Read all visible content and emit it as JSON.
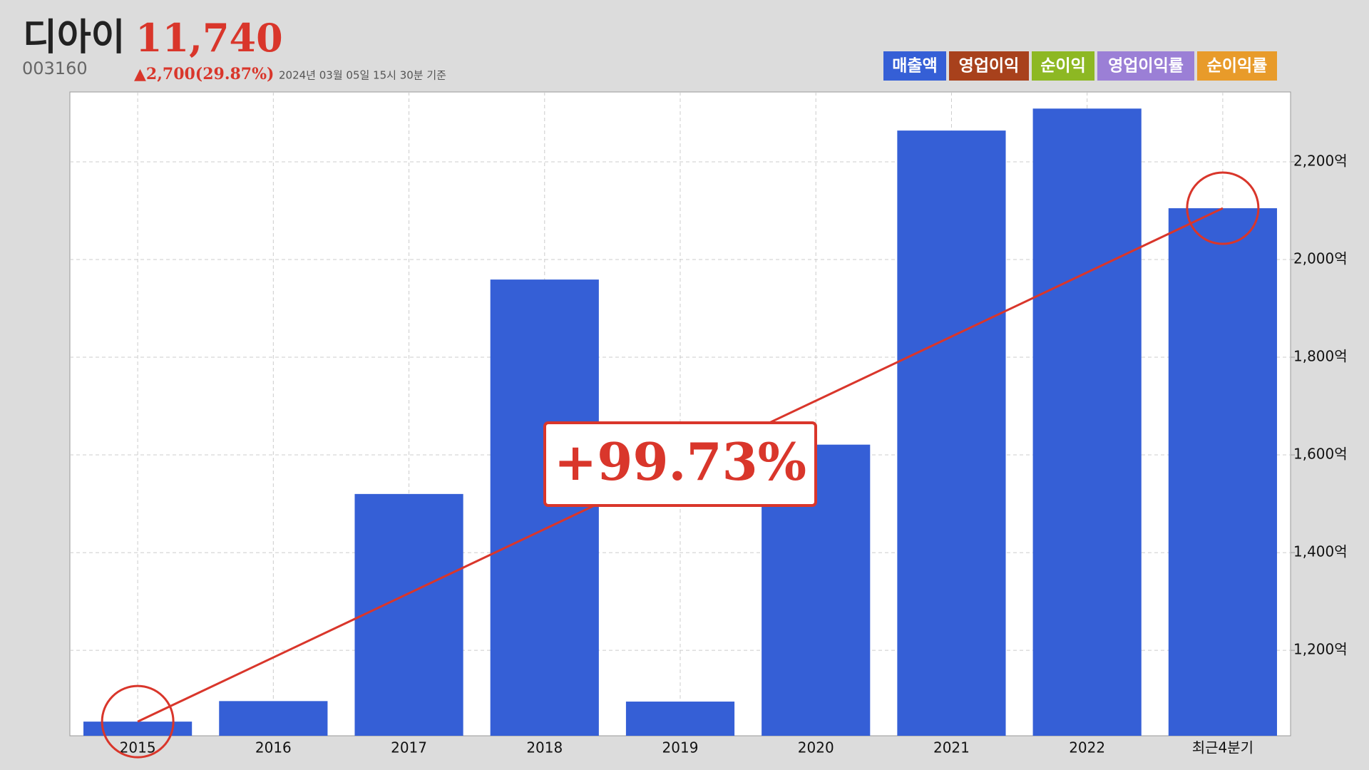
{
  "header": {
    "name": "디아이",
    "price": "11,740",
    "code": "003160",
    "change": "▲2,700(29.87%)",
    "timestamp": "2024년 03월 05일 15시 30분 기준"
  },
  "chart_data": {
    "type": "bar",
    "legend": [
      {
        "name": "매출액",
        "color": "#355fd6"
      },
      {
        "name": "영업이익",
        "color": "#a8411c"
      },
      {
        "name": "순이익",
        "color": "#8db823"
      },
      {
        "name": "영업이익률",
        "color": "#9b7fd6"
      },
      {
        "name": "순이익률",
        "color": "#e89b2a"
      }
    ],
    "categories": [
      "2015",
      "2016",
      "2017",
      "2018",
      "2019",
      "2020",
      "2021",
      "2022",
      "최근4분기"
    ],
    "values": [
      1054,
      1096,
      1520,
      1959,
      1095,
      1621,
      2264,
      2309,
      2105
    ],
    "color": "#355fd6",
    "ylim": [
      1025,
      2343
    ],
    "yticks": [
      {
        "value": 1200,
        "label": "1,200억"
      },
      {
        "value": 1400,
        "label": "1,400억"
      },
      {
        "value": 1600,
        "label": "1,600억"
      },
      {
        "value": 1800,
        "label": "1,800억"
      },
      {
        "value": 2000,
        "label": "2,000억"
      },
      {
        "value": 2200,
        "label": "2,200억"
      }
    ],
    "grid": true,
    "annotation": "+99.73%",
    "trend_color": "#d9362b"
  }
}
